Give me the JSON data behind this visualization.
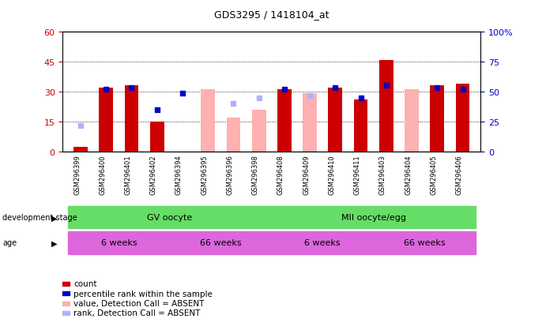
{
  "title": "GDS3295 / 1418104_at",
  "samples": [
    "GSM296399",
    "GSM296400",
    "GSM296401",
    "GSM296402",
    "GSM296394",
    "GSM296395",
    "GSM296396",
    "GSM296398",
    "GSM296408",
    "GSM296409",
    "GSM296410",
    "GSM296411",
    "GSM296403",
    "GSM296404",
    "GSM296405",
    "GSM296406"
  ],
  "count": [
    2,
    32,
    33,
    15,
    null,
    null,
    null,
    null,
    31,
    null,
    32,
    26,
    46,
    null,
    33,
    34
  ],
  "percentile_rank": [
    null,
    31,
    32,
    21,
    29,
    null,
    null,
    null,
    31,
    null,
    32,
    27,
    33,
    null,
    32,
    31
  ],
  "value_absent": [
    2,
    null,
    null,
    null,
    null,
    31,
    17,
    21,
    null,
    29,
    null,
    null,
    null,
    31,
    null,
    null
  ],
  "rank_absent": [
    13,
    null,
    null,
    null,
    null,
    null,
    24,
    27,
    null,
    28,
    null,
    null,
    null,
    null,
    null,
    null
  ],
  "ylim_left": [
    0,
    60
  ],
  "ylim_right": [
    0,
    100
  ],
  "yticks_left": [
    0,
    15,
    30,
    45,
    60
  ],
  "yticks_right": [
    0,
    25,
    50,
    75,
    100
  ],
  "count_color": "#cc0000",
  "percentile_color": "#0000cc",
  "value_absent_color": "#ffb0b0",
  "rank_absent_color": "#b0b0ff",
  "green_color": "#66dd66",
  "magenta_color": "#dd66dd",
  "xtick_bg": "#cccccc",
  "grid_color": "#000000",
  "tick_label_color_left": "#cc0000",
  "tick_label_color_right": "#0000cc",
  "dev_stage_label": "development stage",
  "age_label": "age",
  "legend_labels": [
    "count",
    "percentile rank within the sample",
    "value, Detection Call = ABSENT",
    "rank, Detection Call = ABSENT"
  ],
  "legend_colors": [
    "#cc0000",
    "#0000cc",
    "#ffb0b0",
    "#b0b0ff"
  ],
  "dev_groups": [
    {
      "label": "GV oocyte",
      "start": 0,
      "end": 7
    },
    {
      "label": "MII oocyte/egg",
      "start": 8,
      "end": 15
    }
  ],
  "age_groups": [
    {
      "label": "6 weeks",
      "start": 0,
      "end": 3
    },
    {
      "label": "66 weeks",
      "start": 4,
      "end": 7
    },
    {
      "label": "6 weeks",
      "start": 8,
      "end": 11
    },
    {
      "label": "66 weeks",
      "start": 12,
      "end": 15
    }
  ]
}
